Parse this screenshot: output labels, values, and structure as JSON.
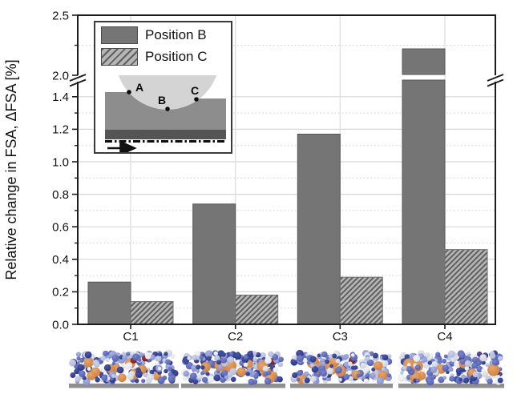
{
  "chart_data": {
    "type": "bar",
    "categories": [
      "C1",
      "C2",
      "C3",
      "C4"
    ],
    "series": [
      {
        "name": "Position B",
        "style": "solid",
        "values": [
          0.26,
          0.74,
          1.17,
          2.22
        ]
      },
      {
        "name": "Position C",
        "style": "hatched",
        "values": [
          0.14,
          0.18,
          0.29,
          0.46
        ]
      }
    ],
    "title": "",
    "xlabel": "",
    "ylabel": "Relative change in FSA, ΔFSA [%]",
    "ylim": [
      0,
      2.5
    ],
    "axis_break": {
      "lower_max": 1.45,
      "upper_min": 1.95
    },
    "ytick_labels": [
      "0.0",
      "0.2",
      "0.4",
      "0.6",
      "0.8",
      "1.0",
      "1.2",
      "1.4",
      "2.0",
      "2.5"
    ],
    "yticks_labeled": [
      0.0,
      0.2,
      0.4,
      0.6,
      0.8,
      1.0,
      1.2,
      1.4,
      2.0,
      2.5
    ],
    "yticks_minor": [
      0.1,
      0.3,
      0.5,
      0.7,
      0.9,
      1.1,
      1.3,
      2.25
    ],
    "grid": {
      "major": "solid",
      "minor": "dotted",
      "vertical": "solid at category centers"
    },
    "legend_position": "inset top-left"
  },
  "legend": {
    "items": [
      {
        "label": "Position B",
        "style": "solid"
      },
      {
        "label": "Position C",
        "style": "hatched"
      }
    ]
  },
  "inset_schematic": {
    "points": [
      {
        "label": "A"
      },
      {
        "label": "B"
      },
      {
        "label": "C"
      }
    ],
    "arrow_icon": "right-arrow (sliding direction)"
  },
  "colors": {
    "bar_solid": "#757575",
    "bar_solid_border": "#565656",
    "hatch_background": "#b5b5b5",
    "hatch_stripe": "#5f5f5f",
    "hatch_border": "#6e6e6e",
    "axis_frame": "#1c1c1c",
    "grid_major": "#d7d7d7",
    "grid_minor": "#cfcfcf",
    "grid_vertical": "#dcdcdc",
    "text": "#111111",
    "inset_ball": "#d4d4d4",
    "inset_block": "#8d8d8d",
    "inset_base_strip": "#545454",
    "thumbnail_substrate": "#8f8f8f"
  },
  "thumbnails": {
    "count": 4,
    "palette": {
      "navy": "#232e7a",
      "blue": "#4a56a8",
      "periwinkle": "#7d88c8",
      "light_blue": "#a9b1d0",
      "silver": "#c6cbd6",
      "pale_gray": "#dde1e8",
      "orange": "#c8793a",
      "dark_red": "#6e1820"
    }
  }
}
